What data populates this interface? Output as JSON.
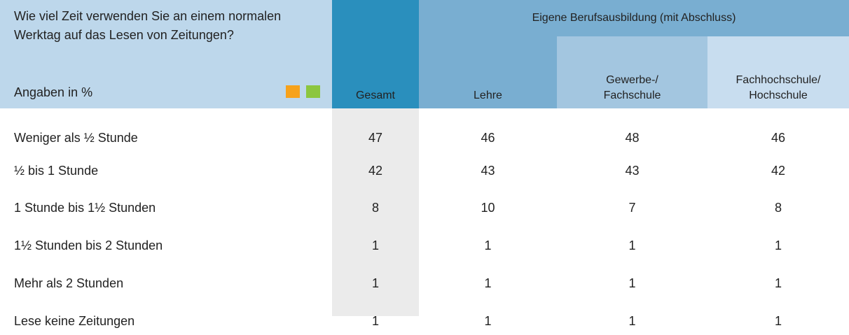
{
  "header": {
    "question": "Wie viel Zeit verwenden Sie an einem normalen Werktag auf das Lesen von Zeitungen?",
    "unit": "Angaben in %",
    "group": "Eigene Berufsausbildung (mit Abschluss)",
    "columns": [
      [
        "Gesamt"
      ],
      [
        "Lehre"
      ],
      [
        "Gewerbe-/",
        "Fachschule"
      ],
      [
        "Fachhochschule/",
        "Hochschule"
      ]
    ]
  },
  "table": {
    "rows": [
      {
        "label": "Weniger als ½ Stunde",
        "values": [
          "47",
          "46",
          "48",
          "46"
        ]
      },
      {
        "label": "½ bis 1 Stunde",
        "values": [
          "42",
          "43",
          "43",
          "42"
        ]
      },
      {
        "label": "1 Stunde bis 1½ Stunden",
        "values": [
          "8",
          "10",
          "7",
          "8"
        ]
      },
      {
        "label": "1½ Stunden bis 2 Stunden",
        "values": [
          "1",
          "1",
          "1",
          "1"
        ]
      },
      {
        "label": "Mehr als 2 Stunden",
        "values": [
          "1",
          "1",
          "1",
          "1"
        ]
      },
      {
        "label": "Lese keine Zeitungen",
        "values": [
          "1",
          "1",
          "1",
          "1"
        ]
      }
    ]
  }
}
